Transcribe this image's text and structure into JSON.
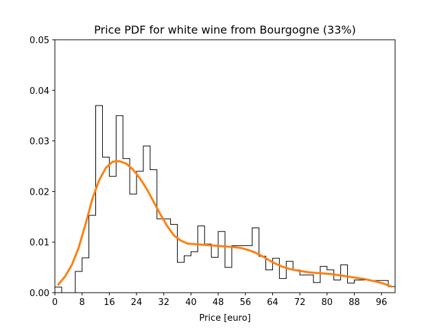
{
  "chart_data": {
    "type": "bar",
    "title": "Price PDF for white wine from Bourgogne (33%)",
    "xlabel": "Price [euro]",
    "ylabel": "",
    "xlim": [
      0,
      100
    ],
    "ylim": [
      0,
      0.05
    ],
    "xticks": [
      0,
      8,
      16,
      24,
      32,
      40,
      48,
      56,
      64,
      72,
      80,
      88,
      96
    ],
    "xtick_labels": [
      "0",
      "8",
      "16",
      "24",
      "32",
      "40",
      "48",
      "56",
      "64",
      "72",
      "80",
      "88",
      "96"
    ],
    "yticks": [
      0.0,
      0.01,
      0.02,
      0.03,
      0.04,
      0.05
    ],
    "ytick_labels": [
      "0.00",
      "0.01",
      "0.02",
      "0.03",
      "0.04",
      "0.05"
    ],
    "grid": false,
    "series": [
      {
        "kind": "histogram-step",
        "color": "#000000",
        "bin_edges": [
          0,
          2,
          4,
          6,
          8,
          10,
          12,
          14,
          16,
          18,
          20,
          22,
          24,
          26,
          28,
          30,
          32,
          34,
          36,
          38,
          40,
          42,
          44,
          46,
          48,
          50,
          52,
          54,
          56,
          58,
          60,
          62,
          64,
          66,
          68,
          70,
          72,
          74,
          76,
          78,
          80,
          82,
          84,
          86,
          88,
          90,
          92,
          94,
          96,
          98,
          100
        ],
        "values": [
          0.0011,
          0.0,
          0.0,
          0.0042,
          0.0069,
          0.0153,
          0.037,
          0.0268,
          0.023,
          0.035,
          0.0265,
          0.0195,
          0.024,
          0.029,
          0.0243,
          0.0146,
          0.0146,
          0.0135,
          0.006,
          0.0073,
          0.0081,
          0.0132,
          0.0096,
          0.007,
          0.0121,
          0.005,
          0.0093,
          0.0093,
          0.0093,
          0.0128,
          0.0072,
          0.0045,
          0.0068,
          0.0028,
          0.0062,
          0.0045,
          0.0035,
          0.0035,
          0.002,
          0.0052,
          0.0045,
          0.0025,
          0.0055,
          0.0019,
          0.0025,
          0.0025,
          0.0024,
          0.0024,
          0.0024,
          0.0012
        ]
      },
      {
        "kind": "density-line",
        "color": "#ff7f0e",
        "x": [
          1,
          3,
          5,
          7,
          9,
          11,
          13,
          15,
          17,
          19,
          21,
          23,
          25,
          27,
          29,
          31,
          33,
          35,
          37,
          39,
          41,
          43,
          45,
          47,
          49,
          51,
          53,
          55,
          57,
          59,
          61,
          63,
          65,
          67,
          69,
          71,
          73,
          75,
          77,
          79,
          81,
          83,
          85,
          87,
          89,
          91,
          93,
          95,
          97,
          99
        ],
        "y": [
          0.0016,
          0.0032,
          0.0055,
          0.0089,
          0.0135,
          0.0185,
          0.0222,
          0.0247,
          0.0259,
          0.026,
          0.0255,
          0.0243,
          0.0226,
          0.0205,
          0.018,
          0.0155,
          0.0132,
          0.0113,
          0.0103,
          0.0097,
          0.0096,
          0.0095,
          0.0094,
          0.0093,
          0.0092,
          0.0091,
          0.009,
          0.0088,
          0.0084,
          0.0079,
          0.0072,
          0.0064,
          0.0057,
          0.0051,
          0.0047,
          0.0044,
          0.0042,
          0.004,
          0.0039,
          0.0038,
          0.0037,
          0.0035,
          0.0033,
          0.0031,
          0.0029,
          0.0027,
          0.0024,
          0.0021,
          0.0017,
          0.0012
        ]
      }
    ]
  }
}
